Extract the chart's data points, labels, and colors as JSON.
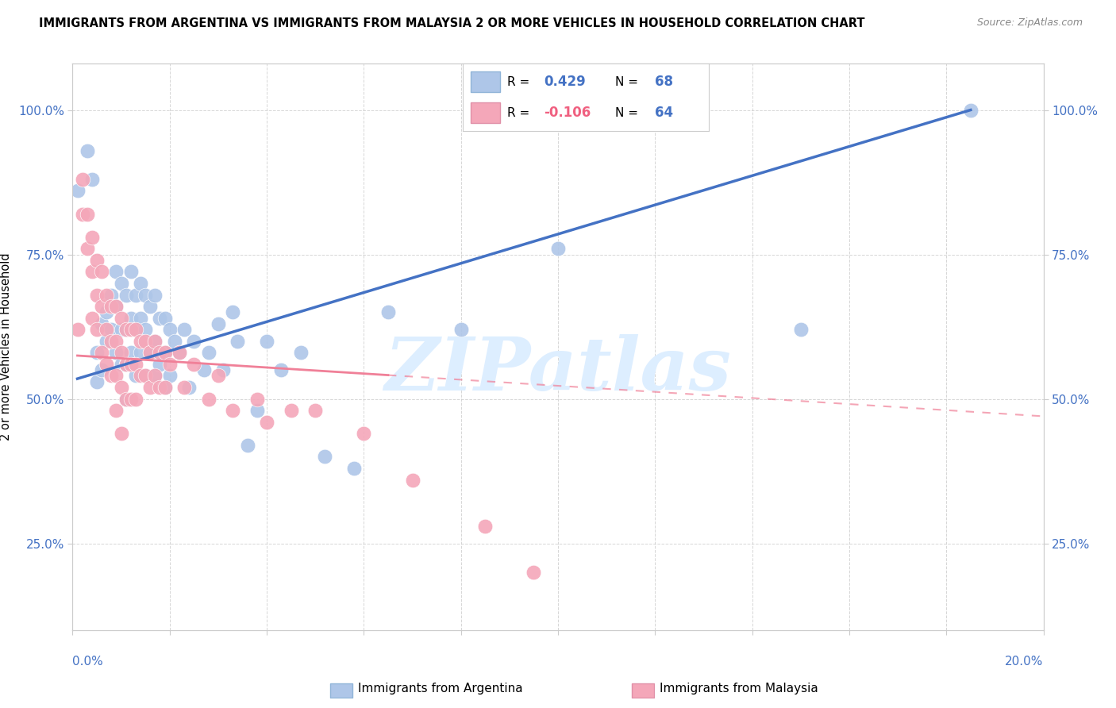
{
  "title": "IMMIGRANTS FROM ARGENTINA VS IMMIGRANTS FROM MALAYSIA 2 OR MORE VEHICLES IN HOUSEHOLD CORRELATION CHART",
  "source": "Source: ZipAtlas.com",
  "ylabel": "2 or more Vehicles in Household",
  "y_tick_vals": [
    0.25,
    0.5,
    0.75,
    1.0
  ],
  "y_tick_labels": [
    "25.0%",
    "50.0%",
    "75.0%",
    "100.0%"
  ],
  "xlim": [
    0.0,
    0.2
  ],
  "ylim": [
    0.1,
    1.08
  ],
  "r_argentina": 0.429,
  "n_argentina": 68,
  "r_malaysia": -0.106,
  "n_malaysia": 64,
  "color_argentina": "#aec6e8",
  "color_malaysia": "#f4a7b9",
  "line_color_argentina": "#4472c4",
  "line_color_malaysia": "#f08098",
  "watermark_text": "ZIPatlas",
  "watermark_color": "#ddeeff",
  "legend_label_argentina": "Immigrants from Argentina",
  "legend_label_malaysia": "Immigrants from Malaysia",
  "argentina_x": [
    0.001,
    0.003,
    0.004,
    0.005,
    0.005,
    0.006,
    0.006,
    0.007,
    0.007,
    0.008,
    0.008,
    0.009,
    0.009,
    0.009,
    0.01,
    0.01,
    0.01,
    0.011,
    0.011,
    0.011,
    0.011,
    0.012,
    0.012,
    0.012,
    0.013,
    0.013,
    0.013,
    0.014,
    0.014,
    0.014,
    0.015,
    0.015,
    0.015,
    0.016,
    0.016,
    0.017,
    0.017,
    0.017,
    0.018,
    0.018,
    0.019,
    0.019,
    0.019,
    0.02,
    0.02,
    0.021,
    0.022,
    0.023,
    0.024,
    0.025,
    0.027,
    0.028,
    0.03,
    0.031,
    0.033,
    0.034,
    0.036,
    0.038,
    0.04,
    0.043,
    0.047,
    0.052,
    0.058,
    0.065,
    0.08,
    0.1,
    0.15,
    0.185
  ],
  "argentina_y": [
    0.86,
    0.93,
    0.88,
    0.58,
    0.53,
    0.63,
    0.55,
    0.65,
    0.6,
    0.68,
    0.62,
    0.72,
    0.66,
    0.58,
    0.7,
    0.62,
    0.56,
    0.68,
    0.62,
    0.56,
    0.5,
    0.72,
    0.64,
    0.58,
    0.68,
    0.62,
    0.54,
    0.7,
    0.64,
    0.58,
    0.68,
    0.62,
    0.54,
    0.66,
    0.58,
    0.68,
    0.6,
    0.54,
    0.64,
    0.56,
    0.64,
    0.58,
    0.52,
    0.62,
    0.54,
    0.6,
    0.58,
    0.62,
    0.52,
    0.6,
    0.55,
    0.58,
    0.63,
    0.55,
    0.65,
    0.6,
    0.42,
    0.48,
    0.6,
    0.55,
    0.58,
    0.4,
    0.38,
    0.65,
    0.62,
    0.76,
    0.62,
    1.0
  ],
  "malaysia_x": [
    0.001,
    0.002,
    0.002,
    0.003,
    0.003,
    0.004,
    0.004,
    0.004,
    0.005,
    0.005,
    0.005,
    0.006,
    0.006,
    0.006,
    0.007,
    0.007,
    0.007,
    0.008,
    0.008,
    0.008,
    0.009,
    0.009,
    0.009,
    0.009,
    0.01,
    0.01,
    0.01,
    0.01,
    0.011,
    0.011,
    0.011,
    0.012,
    0.012,
    0.012,
    0.013,
    0.013,
    0.013,
    0.014,
    0.014,
    0.015,
    0.015,
    0.016,
    0.016,
    0.017,
    0.017,
    0.018,
    0.018,
    0.019,
    0.019,
    0.02,
    0.022,
    0.023,
    0.025,
    0.028,
    0.03,
    0.033,
    0.038,
    0.04,
    0.045,
    0.05,
    0.06,
    0.07,
    0.085,
    0.095
  ],
  "malaysia_y": [
    0.62,
    0.88,
    0.82,
    0.82,
    0.76,
    0.78,
    0.72,
    0.64,
    0.74,
    0.68,
    0.62,
    0.72,
    0.66,
    0.58,
    0.68,
    0.62,
    0.56,
    0.66,
    0.6,
    0.54,
    0.66,
    0.6,
    0.54,
    0.48,
    0.64,
    0.58,
    0.52,
    0.44,
    0.62,
    0.56,
    0.5,
    0.62,
    0.56,
    0.5,
    0.62,
    0.56,
    0.5,
    0.6,
    0.54,
    0.6,
    0.54,
    0.58,
    0.52,
    0.6,
    0.54,
    0.58,
    0.52,
    0.58,
    0.52,
    0.56,
    0.58,
    0.52,
    0.56,
    0.5,
    0.54,
    0.48,
    0.5,
    0.46,
    0.48,
    0.48,
    0.44,
    0.36,
    0.28,
    0.2
  ],
  "argentina_line_x": [
    0.001,
    0.185
  ],
  "malaysia_line_x": [
    0.001,
    0.2
  ],
  "argentina_line_y": [
    0.535,
    1.0
  ],
  "malaysia_line_y": [
    0.575,
    0.47
  ]
}
